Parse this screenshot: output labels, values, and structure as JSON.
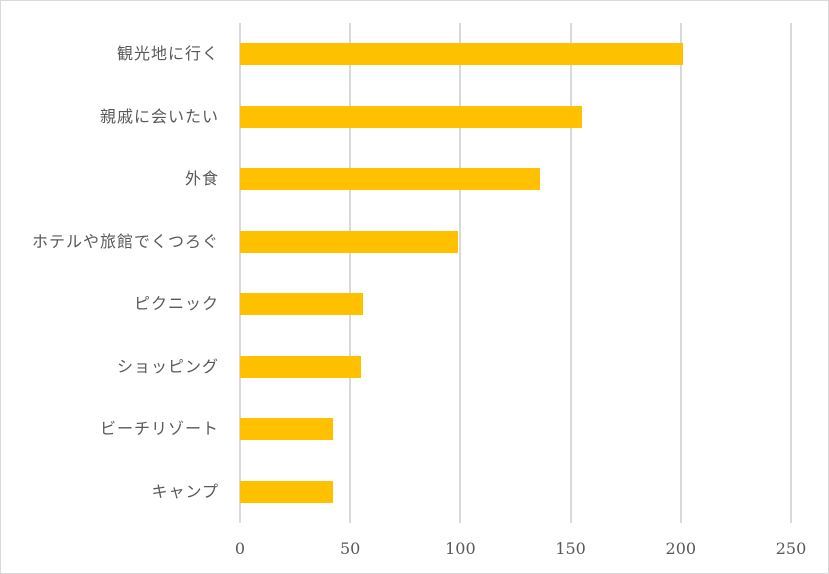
{
  "chart_data": {
    "type": "bar",
    "orientation": "horizontal",
    "title": "",
    "xlabel": "",
    "ylabel": "",
    "categories": [
      "観光地に行く",
      "親戚に会いたい",
      "外食",
      "ホテルや旅館でくつろぐ",
      "ピクニック",
      "ショッピング",
      "ビーチリゾート",
      "キャンプ"
    ],
    "values": [
      201,
      155,
      136,
      99,
      56,
      55,
      42,
      42
    ],
    "xlim": [
      0,
      250
    ],
    "xticks": [
      "0",
      "50",
      "100",
      "150",
      "200",
      "250"
    ],
    "grid": "vertical",
    "legend": "none",
    "bar_color": "#FFC000"
  }
}
